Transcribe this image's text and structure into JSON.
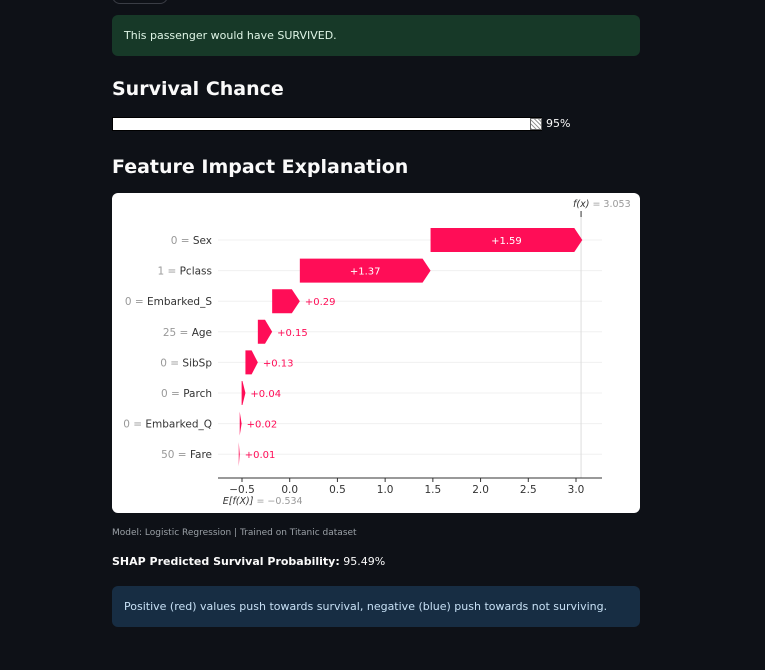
{
  "alerts": {
    "success": "This passenger would have SURVIVED.",
    "info": "Positive (red) values push towards survival, negative (blue) push towards not surviving."
  },
  "headings": {
    "survival": "Survival Chance",
    "impact": "Feature Impact Explanation"
  },
  "progress": {
    "value": 0.9549,
    "label": "95%"
  },
  "caption": "Model: Logistic Regression | Trained on Titanic dataset",
  "probability": {
    "label": "SHAP Predicted Survival Probability:",
    "value": "95.49%"
  },
  "colors": {
    "positive": "#ff0d57",
    "success_bg": "#173928",
    "info_bg": "#172d43"
  },
  "chart_data": {
    "type": "waterfall",
    "fx_label": "f(x)",
    "fx_value": 3.053,
    "base_label": "E[f(X)]",
    "base_value": -0.534,
    "features": [
      {
        "label": "0 = Sex",
        "value": 1.59,
        "text": "+1.59"
      },
      {
        "label": "1 = Pclass",
        "value": 1.37,
        "text": "+1.37"
      },
      {
        "label": "0 = Embarked_S",
        "value": 0.29,
        "text": "+0.29"
      },
      {
        "label": "25 = Age",
        "value": 0.15,
        "text": "+0.15"
      },
      {
        "label": "0 = SibSp",
        "value": 0.13,
        "text": "+0.13"
      },
      {
        "label": "0 = Parch",
        "value": 0.04,
        "text": "+0.04"
      },
      {
        "label": "0 = Embarked_Q",
        "value": 0.02,
        "text": "+0.02"
      },
      {
        "label": "50 = Fare",
        "value": 0.01,
        "text": "+0.01"
      }
    ],
    "x_ticks": [
      -0.5,
      0.0,
      0.5,
      1.0,
      1.5,
      2.0,
      2.5,
      3.0
    ],
    "x_tick_labels": [
      "−0.5",
      "0.0",
      "0.5",
      "1.0",
      "1.5",
      "2.0",
      "2.5",
      "3.0"
    ],
    "xlim": [
      -0.75,
      3.25
    ]
  }
}
